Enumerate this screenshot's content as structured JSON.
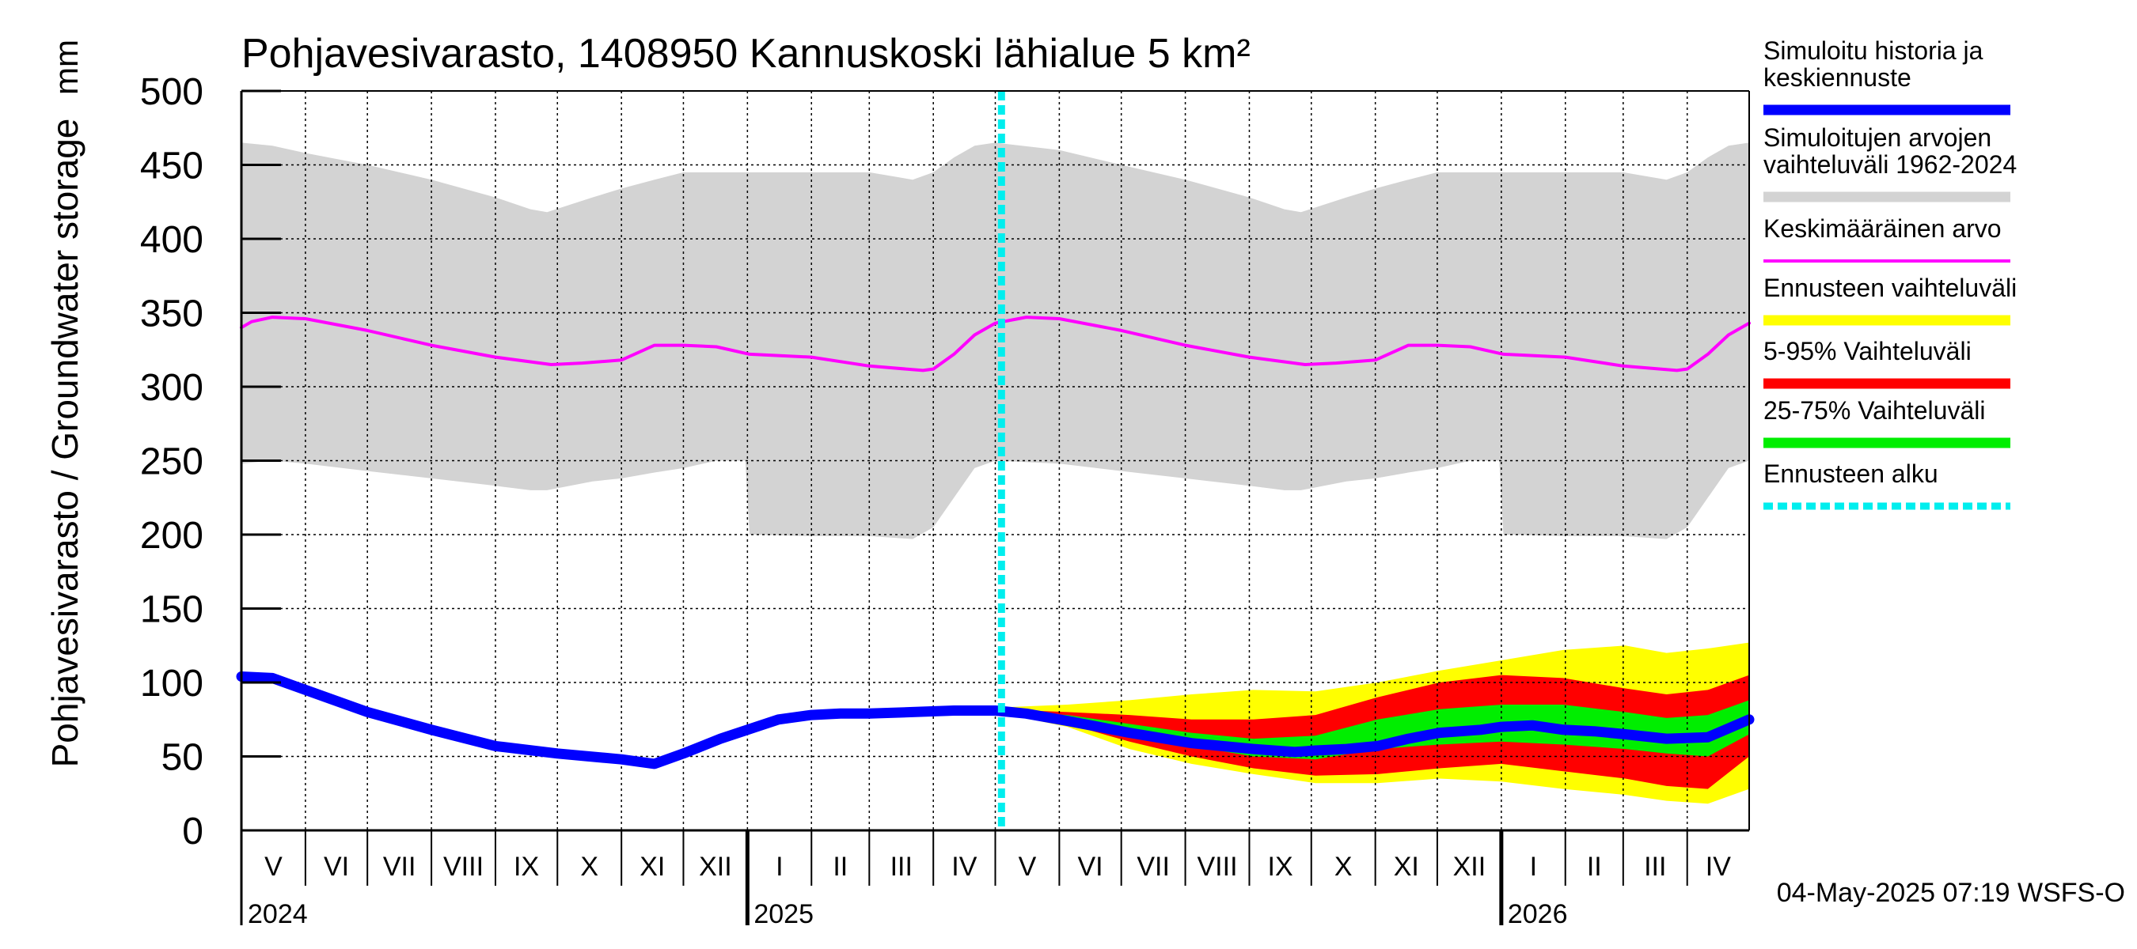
{
  "chart_data": {
    "type": "area",
    "title": "Pohjavesivarasto, 1408950 Kannuskoski lähialue 5 km²",
    "ylabel": "Pohjavesivarasto / Groundwater storage",
    "yunit": "mm",
    "ylim": [
      0,
      500
    ],
    "yticks": [
      0,
      50,
      100,
      150,
      200,
      250,
      300,
      350,
      400,
      450,
      500
    ],
    "xlim_days": [
      0,
      730
    ],
    "x_unit": "days since 1 May 2024",
    "months": [
      {
        "label": "V",
        "start": 0
      },
      {
        "label": "VI",
        "start": 31
      },
      {
        "label": "VII",
        "start": 61
      },
      {
        "label": "VIII",
        "start": 92
      },
      {
        "label": "IX",
        "start": 123
      },
      {
        "label": "X",
        "start": 153
      },
      {
        "label": "XI",
        "start": 184
      },
      {
        "label": "XII",
        "start": 214
      },
      {
        "label": "I",
        "start": 245
      },
      {
        "label": "II",
        "start": 276
      },
      {
        "label": "III",
        "start": 304
      },
      {
        "label": "IV",
        "start": 335
      },
      {
        "label": "V",
        "start": 365
      },
      {
        "label": "VI",
        "start": 396
      },
      {
        "label": "VII",
        "start": 426
      },
      {
        "label": "VIII",
        "start": 457
      },
      {
        "label": "IX",
        "start": 488
      },
      {
        "label": "X",
        "start": 518
      },
      {
        "label": "XI",
        "start": 549
      },
      {
        "label": "XII",
        "start": 579
      },
      {
        "label": "I",
        "start": 610
      },
      {
        "label": "II",
        "start": 641
      },
      {
        "label": "III",
        "start": 669
      },
      {
        "label": "IV",
        "start": 700
      }
    ],
    "years": [
      {
        "label": "2024",
        "day": 0
      },
      {
        "label": "2025",
        "day": 245
      },
      {
        "label": "2026",
        "day": 610
      }
    ],
    "forecast_start_day": 368,
    "series": [
      {
        "name": "Simuloitujen arvojen vaihteluväli 1962-2024",
        "kind": "band",
        "color": "#d3d3d3",
        "x": [
          0,
          15,
          31,
          61,
          92,
          123,
          140,
          148,
          170,
          184,
          200,
          214,
          230,
          244,
          246,
          276,
          304,
          325,
          335,
          345,
          355,
          365,
          396,
          426,
          457,
          488,
          505,
          513,
          535,
          549,
          565,
          579,
          595,
          609,
          611,
          641,
          669,
          690,
          700,
          710,
          720,
          730
        ],
        "upper": [
          465,
          463,
          458,
          450,
          440,
          428,
          420,
          418,
          428,
          434,
          440,
          445,
          445,
          445,
          445,
          445,
          445,
          440,
          445,
          455,
          463,
          465,
          460,
          450,
          440,
          428,
          420,
          418,
          428,
          434,
          440,
          445,
          445,
          445,
          445,
          445,
          445,
          440,
          445,
          455,
          463,
          465
        ],
        "lower": [
          248,
          250,
          248,
          243,
          238,
          233,
          230,
          230,
          236,
          238,
          242,
          245,
          250,
          250,
          200,
          199,
          199,
          197,
          205,
          225,
          245,
          250,
          248,
          243,
          238,
          233,
          230,
          230,
          236,
          238,
          242,
          245,
          250,
          250,
          200,
          199,
          199,
          197,
          205,
          225,
          245,
          250
        ]
      },
      {
        "name": "Keskimääräinen arvo",
        "kind": "line",
        "color": "#ff00ff",
        "x": [
          0,
          5,
          15,
          31,
          61,
          92,
          123,
          150,
          165,
          184,
          200,
          205,
          214,
          230,
          246,
          276,
          304,
          330,
          335,
          345,
          355,
          365,
          380,
          396,
          426,
          457,
          488,
          515,
          530,
          549,
          565,
          570,
          579,
          595,
          611,
          641,
          669,
          695,
          700,
          710,
          720,
          730
        ],
        "values": [
          340,
          344,
          347,
          346,
          338,
          328,
          320,
          315,
          316,
          318,
          328,
          328,
          328,
          327,
          322,
          320,
          314,
          311,
          312,
          322,
          335,
          343,
          347,
          346,
          338,
          328,
          320,
          315,
          316,
          318,
          328,
          328,
          328,
          327,
          322,
          320,
          314,
          311,
          312,
          322,
          335,
          343
        ]
      },
      {
        "name": "Ennusteen vaihteluväli",
        "kind": "band",
        "color": "#ffff00",
        "x": [
          365,
          400,
          430,
          460,
          490,
          520,
          550,
          580,
          610,
          640,
          670,
          690,
          710,
          730
        ],
        "upper": [
          83,
          85,
          88,
          92,
          95,
          94,
          100,
          108,
          115,
          122,
          125,
          120,
          123,
          127
        ],
        "lower": [
          80,
          70,
          55,
          45,
          38,
          32,
          32,
          35,
          33,
          28,
          24,
          20,
          18,
          28
        ]
      },
      {
        "name": "5-95% Vaihteluväli",
        "kind": "band",
        "color": "#ff0000",
        "x": [
          365,
          400,
          430,
          460,
          490,
          520,
          550,
          580,
          610,
          640,
          670,
          690,
          710,
          730
        ],
        "upper": [
          82,
          80,
          78,
          75,
          75,
          78,
          90,
          100,
          105,
          103,
          96,
          92,
          95,
          105
        ],
        "lower": [
          80,
          72,
          60,
          50,
          42,
          37,
          38,
          42,
          45,
          40,
          35,
          30,
          28,
          50
        ]
      },
      {
        "name": "25-75% Vaihteluväli",
        "kind": "band",
        "color": "#00ee00",
        "x": [
          365,
          400,
          430,
          460,
          490,
          520,
          550,
          580,
          610,
          640,
          670,
          690,
          710,
          730
        ],
        "upper": [
          81,
          78,
          72,
          66,
          62,
          64,
          75,
          82,
          85,
          85,
          80,
          76,
          78,
          88
        ],
        "lower": [
          80,
          75,
          66,
          57,
          50,
          48,
          55,
          58,
          60,
          58,
          55,
          52,
          50,
          65
        ]
      },
      {
        "name": "Simuloitu historia ja keskiennuste",
        "kind": "line",
        "color": "#0000ff",
        "x": [
          0,
          15,
          31,
          61,
          92,
          123,
          153,
          184,
          200,
          214,
          232,
          245,
          260,
          276,
          290,
          304,
          325,
          345,
          365,
          380,
          400,
          430,
          460,
          490,
          510,
          520,
          535,
          550,
          565,
          580,
          600,
          610,
          625,
          640,
          655,
          670,
          690,
          710,
          730
        ],
        "values": [
          104,
          103,
          95,
          80,
          68,
          57,
          52,
          48,
          45,
          52,
          62,
          68,
          75,
          78,
          79,
          79,
          80,
          81,
          81,
          79,
          74,
          66,
          59,
          55,
          53,
          54,
          55,
          57,
          62,
          66,
          68,
          70,
          71,
          68,
          67,
          65,
          62,
          63,
          75
        ]
      }
    ],
    "legend": [
      {
        "label": "Simuloitu historia ja keskiennuste",
        "color": "#0000ff",
        "style": "thick"
      },
      {
        "label": "Simuloitujen arvojen vaihteluväli 1962-2024",
        "color": "#d3d3d3",
        "style": "thick"
      },
      {
        "label": "Keskimääräinen arvo",
        "color": "#ff00ff",
        "style": "thin"
      },
      {
        "label": "Ennusteen vaihteluväli",
        "color": "#ffff00",
        "style": "thick"
      },
      {
        "label": "5-95% Vaihteluväli",
        "color": "#ff0000",
        "style": "thick"
      },
      {
        "label": "25-75% Vaihteluväli",
        "color": "#00ee00",
        "style": "thick"
      },
      {
        "label": "Ennusteen alku",
        "color": "#00eeee",
        "style": "dotted"
      }
    ],
    "footer": "04-May-2025 07:19 WSFS-O"
  }
}
